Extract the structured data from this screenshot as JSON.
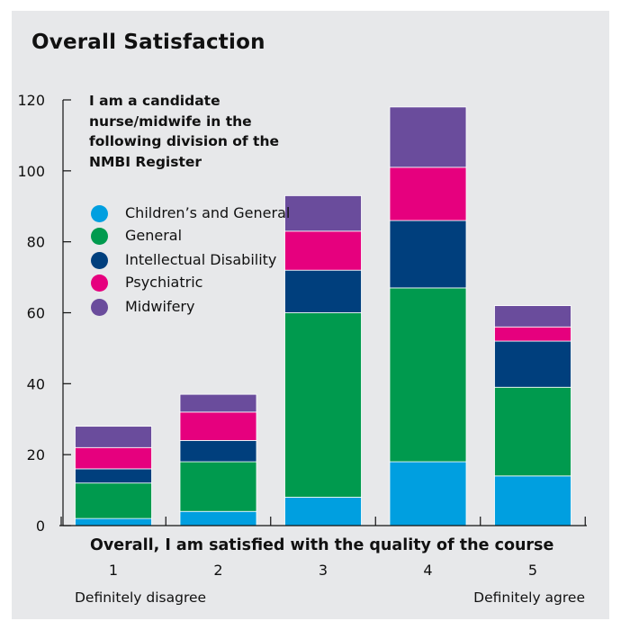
{
  "chart_data": {
    "type": "bar",
    "stacked": true,
    "title": "Overall Satisfaction",
    "xlabel": "Overall, I am satisfied with the quality of the course",
    "categories": [
      "1",
      "2",
      "3",
      "4",
      "5"
    ],
    "x_end_labels": {
      "left": "Definitely disagree",
      "right": "Definitely agree"
    },
    "ylim": [
      0,
      120
    ],
    "yticks": [
      0,
      20,
      40,
      60,
      80,
      100,
      120
    ],
    "grid": false,
    "legend_title": "I am a candidate nurse/midwife in the following division of the NMBI Register",
    "legend_position": "top-left",
    "series": [
      {
        "name": "Children’s and General",
        "color": "#009fe0",
        "values": [
          2,
          4,
          8,
          18,
          14
        ]
      },
      {
        "name": "General",
        "color": "#009a4e",
        "values": [
          10,
          14,
          52,
          49,
          25
        ]
      },
      {
        "name": "Intellectual Disability",
        "color": "#003f7d",
        "values": [
          4,
          6,
          12,
          19,
          13
        ]
      },
      {
        "name": "Psychiatric",
        "color": "#e6007e",
        "values": [
          6,
          8,
          11,
          15,
          4
        ]
      },
      {
        "name": "Midwifery",
        "color": "#6a4c9c",
        "values": [
          6,
          5,
          10,
          17,
          6
        ]
      }
    ]
  }
}
